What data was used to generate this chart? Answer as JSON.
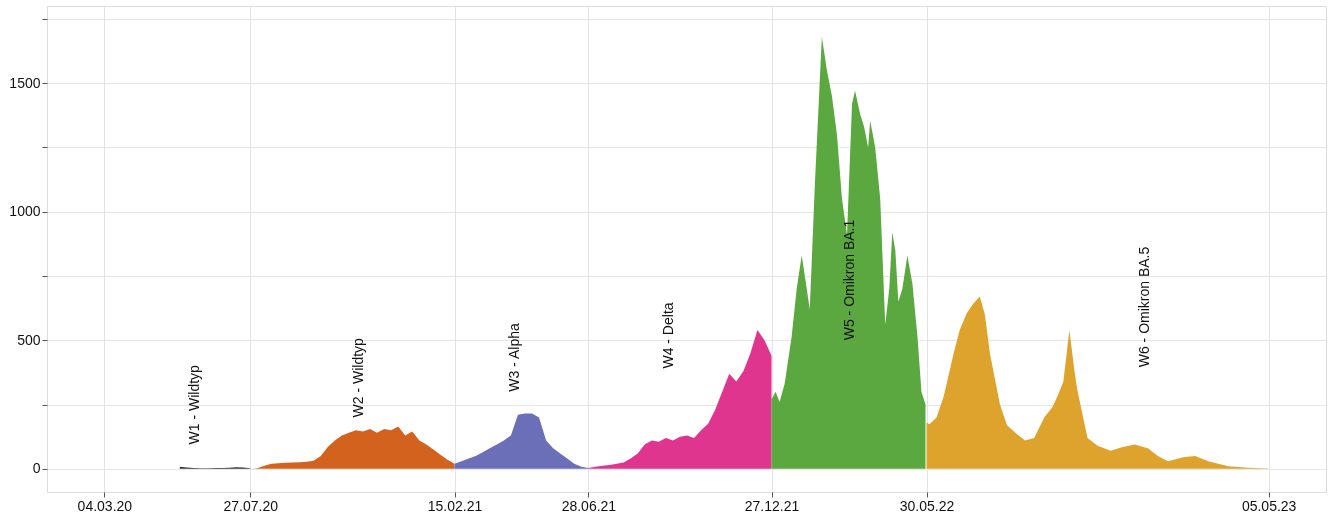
{
  "chart_data": {
    "type": "area",
    "xlim": [
      "2020-01-07",
      "2023-07-01"
    ],
    "ylim": [
      -90,
      1800
    ],
    "xticks": [
      {
        "value": "2020-03-04",
        "label": "04.03.20"
      },
      {
        "value": "2020-07-27",
        "label": "27.07.20"
      },
      {
        "value": "2021-02-15",
        "label": "15.02.21"
      },
      {
        "value": "2021-06-28",
        "label": "28.06.21"
      },
      {
        "value": "2021-12-27",
        "label": "27.12.21"
      },
      {
        "value": "2022-05-30",
        "label": "30.05.22"
      },
      {
        "value": "2023-05-05",
        "label": "05.05.23"
      }
    ],
    "yticks": [
      0,
      {
        "value": 250,
        "label": null
      },
      500,
      {
        "value": 750,
        "label": null
      },
      1000,
      {
        "value": 1250,
        "label": null
      },
      1500,
      {
        "value": 1750,
        "label": null
      }
    ],
    "grid": true,
    "series": [
      {
        "color": "#333333",
        "x": [
          "2020-05-18",
          "2020-05-25",
          "2020-06-01",
          "2020-06-08",
          "2020-06-15",
          "2020-06-22",
          "2020-06-29",
          "2020-07-06",
          "2020-07-13",
          "2020-07-20",
          "2020-07-27"
        ],
        "values": [
          8,
          5,
          3,
          2,
          2,
          3,
          3,
          4,
          6,
          5,
          2
        ]
      },
      {
        "color": "#d4621f",
        "x": [
          "2020-07-27",
          "2020-08-03",
          "2020-08-10",
          "2020-08-17",
          "2020-08-24",
          "2020-08-31",
          "2020-09-07",
          "2020-09-14",
          "2020-09-21",
          "2020-09-28",
          "2020-10-05",
          "2020-10-12",
          "2020-10-19",
          "2020-10-26",
          "2020-11-02",
          "2020-11-09",
          "2020-11-16",
          "2020-11-23",
          "2020-11-30",
          "2020-12-07",
          "2020-12-14",
          "2020-12-21",
          "2020-12-28",
          "2021-01-04",
          "2021-01-11",
          "2021-01-18",
          "2021-01-25",
          "2021-02-01",
          "2021-02-08",
          "2021-02-15"
        ],
        "values": [
          0,
          2,
          12,
          20,
          22,
          24,
          25,
          26,
          28,
          32,
          50,
          85,
          110,
          130,
          140,
          150,
          145,
          155,
          140,
          155,
          150,
          165,
          130,
          145,
          110,
          95,
          75,
          55,
          35,
          20
        ]
      },
      {
        "color": "#6b6fb8",
        "x": [
          "2021-02-15",
          "2021-02-22",
          "2021-03-01",
          "2021-03-08",
          "2021-03-15",
          "2021-03-22",
          "2021-03-29",
          "2021-04-05",
          "2021-04-12",
          "2021-04-19",
          "2021-04-26",
          "2021-05-03",
          "2021-05-10",
          "2021-05-17",
          "2021-05-24",
          "2021-05-31",
          "2021-06-07",
          "2021-06-14",
          "2021-06-21",
          "2021-06-28"
        ],
        "values": [
          20,
          30,
          40,
          50,
          65,
          80,
          95,
          110,
          130,
          210,
          215,
          215,
          200,
          110,
          80,
          60,
          40,
          20,
          8,
          3
        ]
      },
      {
        "color": "#e0358f",
        "x": [
          "2021-06-28",
          "2021-07-05",
          "2021-07-12",
          "2021-07-19",
          "2021-07-26",
          "2021-08-02",
          "2021-08-09",
          "2021-08-16",
          "2021-08-23",
          "2021-08-30",
          "2021-09-06",
          "2021-09-13",
          "2021-09-20",
          "2021-09-27",
          "2021-10-04",
          "2021-10-11",
          "2021-10-18",
          "2021-10-25",
          "2021-11-01",
          "2021-11-08",
          "2021-11-15",
          "2021-11-22",
          "2021-11-29",
          "2021-12-06",
          "2021-12-13",
          "2021-12-20",
          "2021-12-27"
        ],
        "values": [
          3,
          8,
          12,
          15,
          20,
          25,
          40,
          60,
          95,
          110,
          105,
          120,
          110,
          125,
          130,
          120,
          150,
          175,
          230,
          300,
          370,
          340,
          380,
          450,
          540,
          500,
          440
        ]
      },
      {
        "color": "#5aa83f",
        "x": [
          "2021-12-27",
          "2021-12-31",
          "2022-01-04",
          "2022-01-09",
          "2022-01-16",
          "2022-01-21",
          "2022-01-26",
          "2022-01-31",
          "2022-02-03",
          "2022-02-08",
          "2022-02-15",
          "2022-02-20",
          "2022-02-25",
          "2022-03-02",
          "2022-03-07",
          "2022-03-12",
          "2022-03-17",
          "2022-03-20",
          "2022-03-25",
          "2022-03-29",
          "2022-04-02",
          "2022-04-04",
          "2022-04-09",
          "2022-04-14",
          "2022-04-19",
          "2022-04-23",
          "2022-04-26",
          "2022-04-29",
          "2022-05-02",
          "2022-05-06",
          "2022-05-11",
          "2022-05-16",
          "2022-05-21",
          "2022-05-25",
          "2022-05-29"
        ],
        "values": [
          270,
          300,
          260,
          330,
          515,
          700,
          830,
          700,
          620,
          1100,
          1680,
          1550,
          1450,
          1300,
          1050,
          910,
          1420,
          1470,
          1380,
          1330,
          1250,
          1355,
          1250,
          1050,
          560,
          700,
          920,
          850,
          650,
          700,
          830,
          720,
          515,
          300,
          250
        ]
      },
      {
        "color": "#dea32c",
        "x": [
          "2022-05-30",
          "2022-06-02",
          "2022-06-09",
          "2022-06-16",
          "2022-06-26",
          "2022-07-02",
          "2022-07-09",
          "2022-07-15",
          "2022-07-22",
          "2022-07-27",
          "2022-08-01",
          "2022-08-11",
          "2022-08-18",
          "2022-08-28",
          "2022-09-05",
          "2022-09-14",
          "2022-09-24",
          "2022-10-02",
          "2022-10-07",
          "2022-10-13",
          "2022-10-19",
          "2022-10-24",
          "2022-10-27",
          "2022-11-06",
          "2022-11-16",
          "2022-11-29",
          "2022-12-11",
          "2022-12-23",
          "2023-01-05",
          "2023-01-15",
          "2023-01-25",
          "2023-02-09",
          "2023-02-21",
          "2023-03-06",
          "2023-03-26",
          "2023-04-15",
          "2023-05-05"
        ],
        "values": [
          180,
          173,
          200,
          280,
          450,
          540,
          605,
          640,
          670,
          600,
          450,
          250,
          170,
          135,
          110,
          120,
          200,
          240,
          280,
          340,
          540,
          380,
          305,
          120,
          90,
          70,
          85,
          95,
          80,
          50,
          30,
          45,
          50,
          30,
          10,
          4,
          1
        ]
      }
    ],
    "annotations": [
      "W1 - Wildtyp",
      "W2 - Wildtyp",
      "W3 - Alpha",
      "W4 - Delta",
      "W5 - Omikron BA.1",
      "W6 - Omikron BA.5"
    ]
  }
}
